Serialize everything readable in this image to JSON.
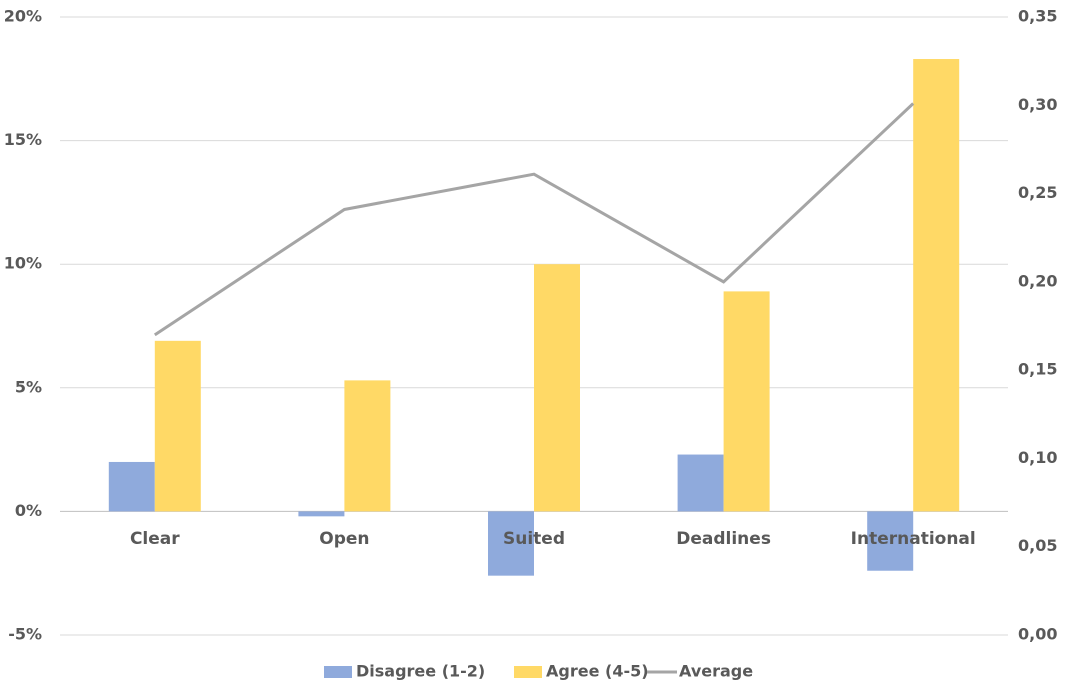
{
  "chart_data": {
    "type": "bar",
    "categories": [
      "Clear",
      "Open",
      "Suited",
      "Deadlines",
      "International"
    ],
    "series": [
      {
        "name": "Disagree (1-2)",
        "color": "#8faadc",
        "values": [
          2.0,
          -0.2,
          -2.6,
          2.3,
          -2.4
        ]
      },
      {
        "name": "Agree (4-5)",
        "color": "#ffd966",
        "values": [
          6.9,
          5.3,
          10.0,
          8.9,
          18.3
        ]
      },
      {
        "name": "Average",
        "type": "line",
        "axis": "y2",
        "color": "#a5a5a5",
        "values": [
          0.17,
          0.241,
          0.261,
          0.2,
          0.301
        ]
      }
    ],
    "ylim": [
      -5,
      20
    ],
    "yticks": [
      {
        "value": -5,
        "label": "-5%"
      },
      {
        "value": 0,
        "label": "0%"
      },
      {
        "value": 5,
        "label": "5%"
      },
      {
        "value": 10,
        "label": "10%"
      },
      {
        "value": 15,
        "label": "15%"
      },
      {
        "value": 20,
        "label": "20%"
      }
    ],
    "y2lim": [
      0,
      0.35
    ],
    "y2ticks": [
      {
        "value": 0,
        "label": "0,00"
      },
      {
        "value": 0.05,
        "label": "0,05"
      },
      {
        "value": 0.1,
        "label": "0,10"
      },
      {
        "value": 0.15,
        "label": "0,15"
      },
      {
        "value": 0.2,
        "label": "0,20"
      },
      {
        "value": 0.25,
        "label": "0,25"
      },
      {
        "value": 0.3,
        "label": "0,30"
      },
      {
        "value": 0.35,
        "label": "0,35"
      }
    ],
    "grid": true,
    "legend": "bottom"
  }
}
